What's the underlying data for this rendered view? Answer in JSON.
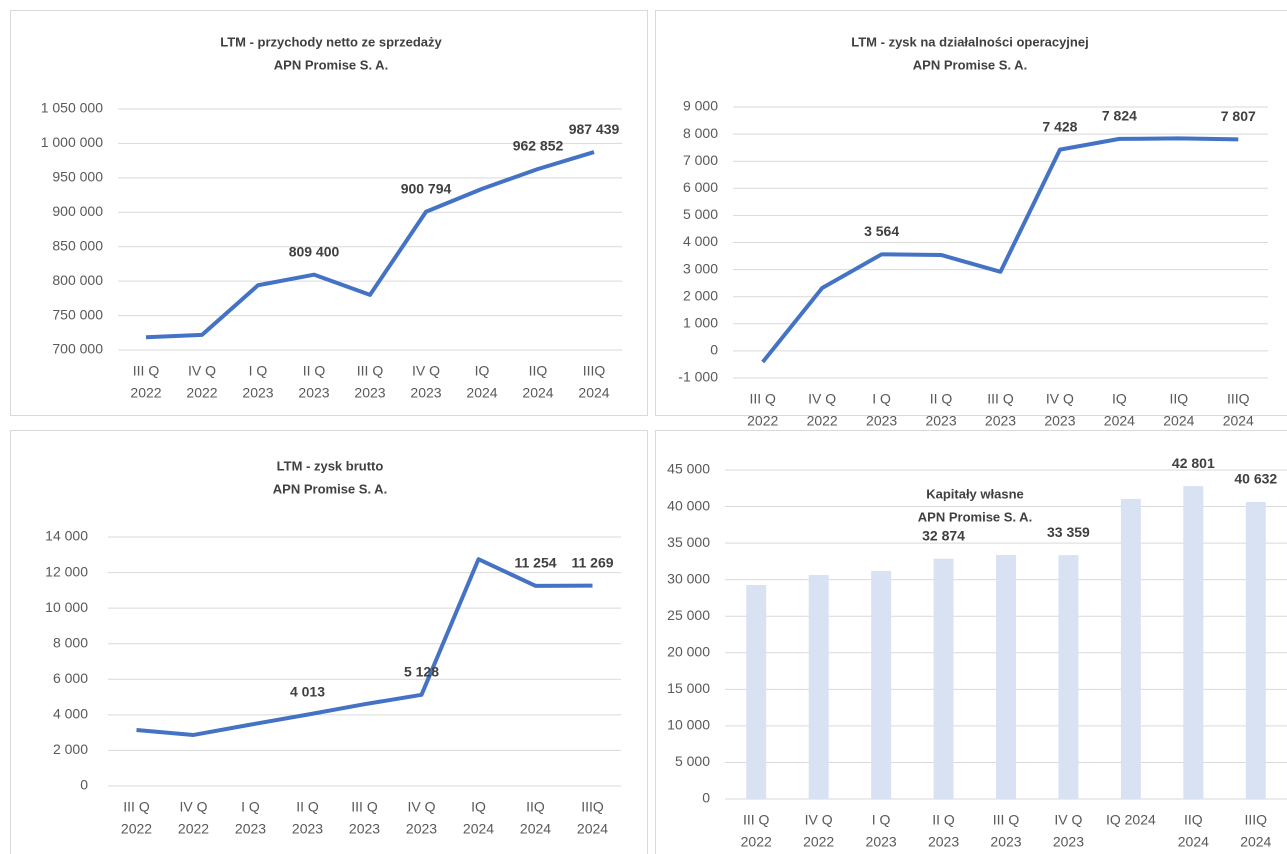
{
  "chart_data": [
    {
      "type": "line",
      "title": "LTM - przychody netto ze sprzedaży",
      "subtitle": "APN Promise S. A.",
      "color": "#4472c4",
      "grid": true,
      "categories": [
        [
          "III Q",
          "2022"
        ],
        [
          "IV Q",
          "2022"
        ],
        [
          "I Q",
          "2023"
        ],
        [
          "II Q",
          "2023"
        ],
        [
          "III Q",
          "2023"
        ],
        [
          "IV Q",
          "2023"
        ],
        [
          "IQ",
          "2024"
        ],
        [
          "IIQ",
          "2024"
        ],
        [
          "IIIQ",
          "2024"
        ]
      ],
      "values": [
        718600,
        722000,
        794000,
        809400,
        780000,
        900794,
        934000,
        962852,
        987439
      ],
      "value_labels": [
        null,
        null,
        null,
        "809 400",
        null,
        "900 794",
        null,
        "962 852",
        "987 439"
      ],
      "ylim": [
        700000,
        1050000
      ],
      "yticks": [
        {
          "value": 700000,
          "label": "700 000"
        },
        {
          "value": 750000,
          "label": "750 000"
        },
        {
          "value": 800000,
          "label": "800 000"
        },
        {
          "value": 850000,
          "label": "850 000"
        },
        {
          "value": 900000,
          "label": "900 000"
        },
        {
          "value": 950000,
          "label": "950 000"
        },
        {
          "value": 1000000,
          "label": "1 000 000"
        },
        {
          "value": 1050000,
          "label": "1 050 000"
        }
      ]
    },
    {
      "type": "line",
      "title": "LTM - zysk na działalności operacyjnej",
      "subtitle": "APN Promise S. A.",
      "color": "#4472c4",
      "grid": true,
      "categories": [
        [
          "III Q",
          "2022"
        ],
        [
          "IV Q",
          "2022"
        ],
        [
          "I Q",
          "2023"
        ],
        [
          "II Q",
          "2023"
        ],
        [
          "III Q",
          "2023"
        ],
        [
          "IV Q",
          "2023"
        ],
        [
          "IQ",
          "2024"
        ],
        [
          "IIQ",
          "2024"
        ],
        [
          "IIIQ",
          "2024"
        ]
      ],
      "values": [
        -410,
        2320,
        3564,
        3540,
        2920,
        7428,
        7824,
        7840,
        7807
      ],
      "value_labels": [
        null,
        null,
        "3 564",
        null,
        null,
        "7 428",
        "7 824",
        null,
        "7 807"
      ],
      "ylim": [
        -1000,
        9000
      ],
      "yticks": [
        {
          "value": -1000,
          "label": "-1 000"
        },
        0,
        {
          "value": 1000,
          "label": "1 000"
        },
        {
          "value": 2000,
          "label": "2 000"
        },
        {
          "value": 3000,
          "label": "3 000"
        },
        {
          "value": 4000,
          "label": "4 000"
        },
        {
          "value": 5000,
          "label": "5 000"
        },
        {
          "value": 6000,
          "label": "6 000"
        },
        {
          "value": 7000,
          "label": "7 000"
        },
        {
          "value": 8000,
          "label": "8 000"
        },
        {
          "value": 9000,
          "label": "9 000"
        }
      ]
    },
    {
      "type": "line",
      "title": "LTM - zysk brutto",
      "subtitle": "APN Promise S. A.",
      "color": "#4472c4",
      "grid": true,
      "categories": [
        [
          "III Q",
          "2022"
        ],
        [
          "IV Q",
          "2022"
        ],
        [
          "I Q",
          "2023"
        ],
        [
          "II Q",
          "2023"
        ],
        [
          "III Q",
          "2023"
        ],
        [
          "IV Q",
          "2023"
        ],
        [
          "IQ",
          "2024"
        ],
        [
          "IIQ",
          "2024"
        ],
        [
          "IIIQ",
          "2024"
        ]
      ],
      "values": [
        3150,
        2870,
        3450,
        4013,
        4600,
        5128,
        12750,
        11254,
        11269
      ],
      "value_labels": [
        null,
        null,
        null,
        "4 013",
        null,
        "5 128",
        null,
        "11 254",
        "11 269"
      ],
      "ylim": [
        0,
        14000
      ],
      "yticks": [
        0,
        {
          "value": 2000,
          "label": "2 000"
        },
        {
          "value": 4000,
          "label": "4 000"
        },
        {
          "value": 6000,
          "label": "6 000"
        },
        {
          "value": 8000,
          "label": "8 000"
        },
        {
          "value": 10000,
          "label": "10 000"
        },
        {
          "value": 12000,
          "label": "12 000"
        },
        {
          "value": 14000,
          "label": "14 000"
        }
      ]
    },
    {
      "type": "bar",
      "title": "Kapitały własne",
      "subtitle": "APN Promise S. A.",
      "color": "#d9e2f3",
      "grid": true,
      "categories": [
        [
          "III Q",
          "2022"
        ],
        [
          "IV Q",
          "2022"
        ],
        [
          "I Q",
          "2023"
        ],
        [
          "II Q",
          "2023"
        ],
        [
          "III Q",
          "2023"
        ],
        [
          "IV Q",
          "2023"
        ],
        [
          "IQ 2024"
        ],
        [
          "IIQ",
          "2024"
        ],
        [
          "IIIQ",
          "2024"
        ]
      ],
      "values": [
        29270,
        30640,
        31190,
        32874,
        33380,
        33359,
        41040,
        42801,
        40632
      ],
      "value_labels": [
        null,
        null,
        null,
        "32 874",
        null,
        "33 359",
        null,
        "42 801",
        "40 632"
      ],
      "ylim": [
        0,
        45000
      ],
      "yticks": [
        0,
        {
          "value": 5000,
          "label": "5 000"
        },
        {
          "value": 10000,
          "label": "10 000"
        },
        {
          "value": 15000,
          "label": "15 000"
        },
        {
          "value": 20000,
          "label": "20 000"
        },
        {
          "value": 25000,
          "label": "25 000"
        },
        {
          "value": 30000,
          "label": "30 000"
        },
        {
          "value": 35000,
          "label": "35 000"
        },
        {
          "value": 40000,
          "label": "40 000"
        },
        {
          "value": 45000,
          "label": "45 000"
        }
      ]
    }
  ]
}
